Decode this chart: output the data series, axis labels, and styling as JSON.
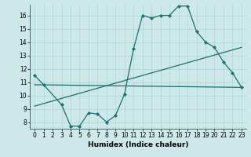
{
  "xlabel": "Humidex (Indice chaleur)",
  "bg_color": "#cce8e8",
  "line_color": "#1a7070",
  "grid_color": "#aad4d4",
  "xlim": [
    -0.5,
    23.5
  ],
  "ylim": [
    7.5,
    16.8
  ],
  "xticks": [
    0,
    1,
    2,
    3,
    4,
    5,
    6,
    7,
    8,
    9,
    10,
    11,
    12,
    13,
    14,
    15,
    16,
    17,
    18,
    19,
    20,
    21,
    22,
    23
  ],
  "yticks": [
    8,
    9,
    10,
    11,
    12,
    13,
    14,
    15,
    16
  ],
  "series1_x": [
    0,
    1,
    3,
    4,
    5,
    6,
    7,
    8,
    9,
    10,
    11,
    12,
    13,
    14,
    15,
    16,
    17,
    18,
    19,
    20,
    21,
    22,
    23
  ],
  "series1_y": [
    11.5,
    10.8,
    9.3,
    7.7,
    7.7,
    8.7,
    8.6,
    8.0,
    8.5,
    10.1,
    13.5,
    16.0,
    15.8,
    16.0,
    16.0,
    16.7,
    16.7,
    14.8,
    14.0,
    13.6,
    12.5,
    11.7,
    10.6
  ],
  "line1_x": [
    0,
    23
  ],
  "line1_y": [
    10.8,
    10.6
  ],
  "line2_x": [
    0,
    23
  ],
  "line2_y": [
    9.2,
    13.6
  ]
}
